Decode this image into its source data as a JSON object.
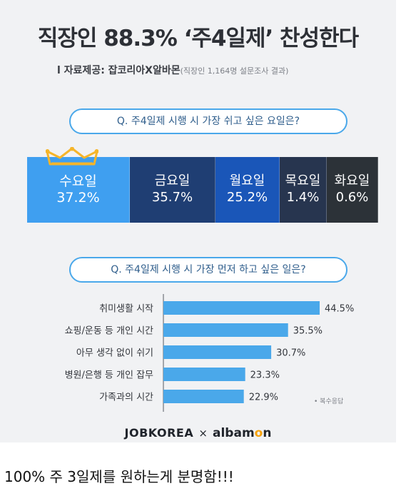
{
  "title": "직장인 88.3% ‘주4일제’ 찬성한다",
  "source": {
    "prefix": "l 자료제공: 잡코리아X알바몬",
    "note": "(직장인 1,164명 설문조사 결과)"
  },
  "question1": "Q. 주4일제 시행 시 가장 쉬고 싶은 요일은?",
  "question2": "Q. 주4일제 시행 시 가장 먼저 하고 싶은 일은?",
  "crown_icon": "crown-icon",
  "colors": {
    "accent": "#4aa8ea",
    "bar": "#4aa8ea",
    "day_boxes": [
      "#3f9ff0",
      "#1f3e73",
      "#1a56b8",
      "#27354f",
      "#2c3238"
    ],
    "crown": "#f5b52a"
  },
  "chart_data": [
    {
      "type": "table",
      "title": "",
      "categories": [
        "수요일",
        "금요일",
        "월요일",
        "목요일",
        "화요일"
      ],
      "values": [
        37.2,
        35.7,
        25.2,
        1.4,
        0.6
      ],
      "value_labels": [
        "37.2%",
        "35.7%",
        "25.2%",
        "1.4%",
        "0.6%"
      ]
    },
    {
      "type": "bar",
      "orientation": "horizontal",
      "title": "",
      "categories": [
        "취미생활 시작",
        "쇼핑/운동 등 개인 시간",
        "아무 생각 없이 쉬기",
        "병원/은행 등 개인 잡무",
        "가족과의 시간"
      ],
      "values": [
        44.5,
        35.5,
        30.7,
        23.3,
        22.9
      ],
      "value_labels": [
        "44.5%",
        "35.5%",
        "30.7%",
        "23.3%",
        "22.9%"
      ],
      "xlim": [
        0,
        50
      ],
      "grid": false,
      "note": "• 복수응답"
    }
  ],
  "logos": {
    "left": "JOBKOREA",
    "separator": "×",
    "right_prefix": "alba",
    "right_mark": "m",
    "right_o": "o",
    "right_suffix": "n"
  },
  "caption": "100% 주 3일제를 원하는게 분명함!!!"
}
